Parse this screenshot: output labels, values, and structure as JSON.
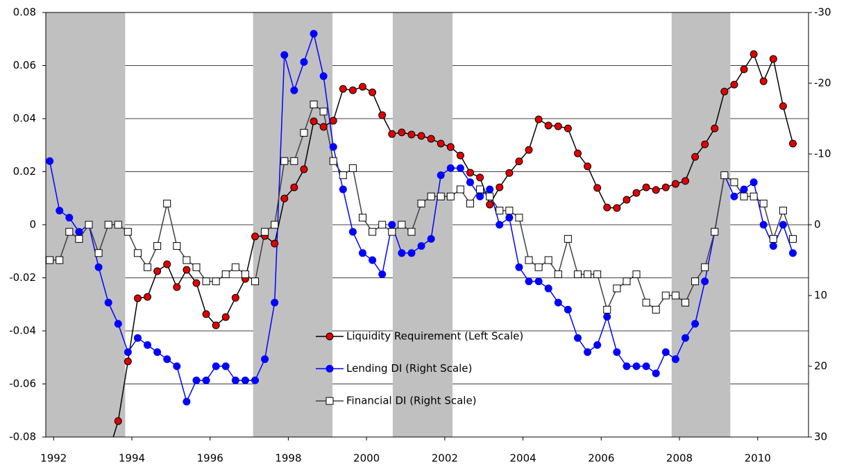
{
  "chart_data": {
    "type": "line",
    "x": [
      1991.9,
      1992.15,
      1992.4,
      1992.65,
      1992.9,
      1993.15,
      1993.4,
      1993.65,
      1993.9,
      1994.15,
      1994.4,
      1994.65,
      1994.9,
      1995.15,
      1995.4,
      1995.65,
      1995.9,
      1996.15,
      1996.4,
      1996.65,
      1996.9,
      1997.15,
      1997.4,
      1997.65,
      1997.9,
      1998.15,
      1998.4,
      1998.65,
      1998.9,
      1999.15,
      1999.4,
      1999.65,
      1999.9,
      2000.15,
      2000.4,
      2000.65,
      2000.9,
      2001.15,
      2001.4,
      2001.65,
      2001.9,
      2002.15,
      2002.4,
      2002.65,
      2002.9,
      2003.15,
      2003.4,
      2003.65,
      2003.9,
      2004.15,
      2004.4,
      2004.65,
      2004.9,
      2005.15,
      2005.4,
      2005.65,
      2005.9,
      2006.15,
      2006.4,
      2006.65,
      2006.9,
      2007.15,
      2007.4,
      2007.65,
      2007.9,
      2008.15,
      2008.4,
      2008.65,
      2008.9,
      2009.15,
      2009.4,
      2009.65,
      2009.9,
      2010.15,
      2010.4,
      2010.65,
      2010.9
    ],
    "xlim": [
      1991.8,
      2011.3
    ],
    "xticks": [
      1992,
      1994,
      1996,
      1998,
      2000,
      2002,
      2004,
      2006,
      2008,
      2010
    ],
    "ylim": [
      -0.08,
      0.08
    ],
    "yticks": [
      -0.08,
      -0.06,
      -0.04,
      -0.02,
      0,
      0.02,
      0.04,
      0.06,
      0.08
    ],
    "y2lim": [
      -30,
      30
    ],
    "y2_inverted": true,
    "y2ticks": [
      -30,
      -20,
      -10,
      0,
      10,
      20,
      30
    ],
    "grid": true,
    "shaded_periods": [
      [
        1991.8,
        1993.83
      ],
      [
        1997.1,
        1999.13
      ],
      [
        2000.67,
        2002.2
      ],
      [
        2007.8,
        2009.3
      ]
    ],
    "shade_color": "#c0c0c0",
    "series": [
      {
        "name": "Liquidity Requirement (Left Scale)",
        "color": "#000000",
        "marker": "circle",
        "marker_color": "#e00000",
        "values": [
          null,
          null,
          null,
          null,
          null,
          null,
          -0.086,
          -0.074,
          -0.0515,
          -0.0277,
          -0.0272,
          -0.0175,
          -0.0149,
          -0.0235,
          -0.017,
          -0.022,
          -0.0337,
          -0.0379,
          -0.0348,
          -0.0275,
          -0.0204,
          -0.0044,
          -0.0042,
          -0.0071,
          0.0099,
          0.0141,
          0.0209,
          0.039,
          0.0369,
          0.0392,
          0.0512,
          0.0507,
          0.052,
          0.0499,
          0.0413,
          0.0342,
          0.0348,
          0.034,
          0.0335,
          0.0324,
          0.0306,
          0.0293,
          0.0261,
          0.0196,
          0.0178,
          0.0076,
          0.0141,
          0.0195,
          0.0239,
          0.0282,
          0.0397,
          0.0374,
          0.0371,
          0.0363,
          0.0269,
          0.022,
          0.0139,
          0.0065,
          0.0063,
          0.0094,
          0.012,
          0.0141,
          0.0131,
          0.0141,
          0.0154,
          0.0165,
          0.0256,
          0.0303,
          0.0363,
          0.0502,
          0.0528,
          0.0586,
          0.0643,
          0.0541,
          0.0625,
          0.0447,
          0.0306
        ]
      },
      {
        "name": "Lending DI (Right Scale)",
        "color": "#0000ff",
        "marker": "circle",
        "marker_color": "#0000ff",
        "axis": "y2",
        "values": [
          -9,
          -2,
          -1,
          1,
          0,
          6,
          11,
          14,
          18,
          16,
          17,
          18,
          19,
          20,
          25,
          22,
          22,
          20,
          20,
          22,
          22,
          22,
          19,
          11,
          -24,
          -19,
          -23,
          -27,
          -21,
          -11,
          -5,
          1,
          4,
          5,
          7,
          0,
          4,
          4,
          3,
          2,
          -7,
          -8,
          -8,
          -6,
          -4,
          -5,
          0,
          -1,
          6,
          8,
          8,
          9,
          11,
          12,
          16,
          18,
          17,
          13,
          18,
          20,
          20,
          20,
          21,
          18,
          19,
          16,
          14,
          8,
          1,
          -7,
          -4,
          -5,
          -6,
          0,
          3,
          0,
          4
        ]
      },
      {
        "name": "Financial DI (Right Scale)",
        "color": "#404040",
        "marker": "square",
        "marker_color": "#ffffff",
        "axis": "y2",
        "values": [
          5,
          5,
          1,
          2,
          0,
          4,
          0,
          0,
          1,
          4,
          6,
          3,
          -3,
          3,
          5,
          6,
          8,
          8,
          7,
          6,
          7,
          8,
          1,
          0,
          -9,
          -9,
          -13,
          -17,
          -16,
          -9,
          -7,
          -8,
          -1,
          1,
          0,
          1,
          0,
          1,
          -3,
          -4,
          -4,
          -4,
          -5,
          -3,
          -5,
          -4,
          -2,
          -2,
          -1,
          5,
          6,
          5,
          7,
          2,
          7,
          7,
          7,
          12,
          9,
          8,
          7,
          11,
          12,
          10,
          10,
          11,
          8,
          6,
          1,
          -7,
          -6,
          -4,
          -4,
          -3,
          2,
          -2,
          2
        ]
      }
    ]
  }
}
